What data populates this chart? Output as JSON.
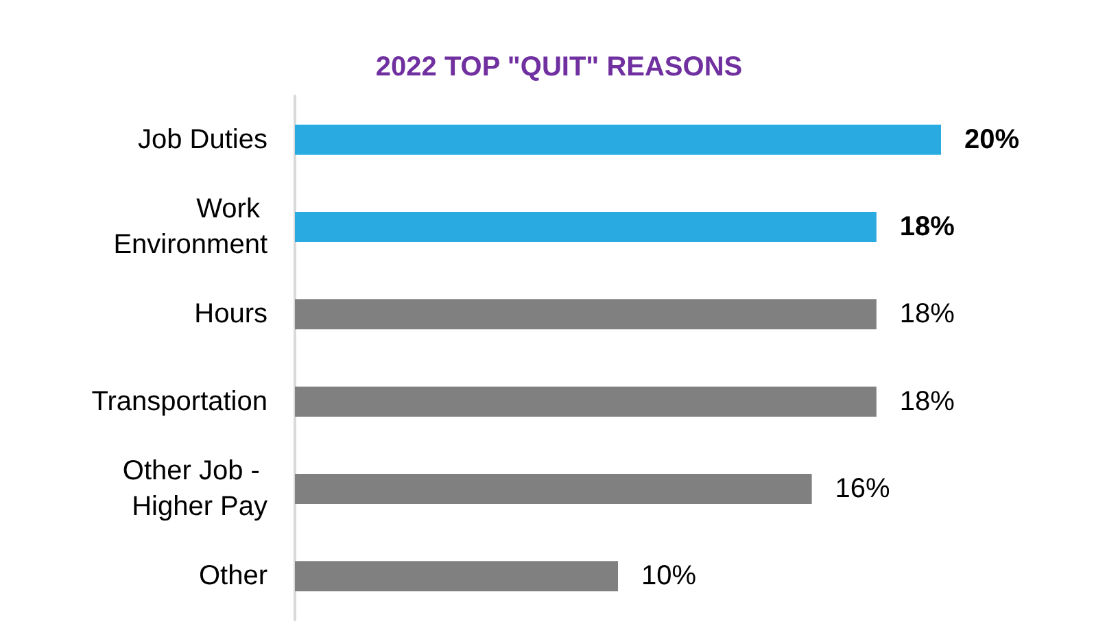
{
  "chart_data": {
    "type": "bar",
    "orientation": "horizontal",
    "title": "2022 TOP \"QUIT\" REASONS",
    "categories": [
      "Job Duties",
      "Work Environment",
      "Hours",
      "Transportation",
      "Other Job - Higher Pay",
      "Other"
    ],
    "values": [
      20,
      18,
      18,
      18,
      16,
      10
    ],
    "value_labels": [
      "20%",
      "18%",
      "18%",
      "18%",
      "16%",
      "10%"
    ],
    "colors": [
      "#29abe2",
      "#29abe2",
      "#808080",
      "#808080",
      "#808080",
      "#808080"
    ]
  }
}
